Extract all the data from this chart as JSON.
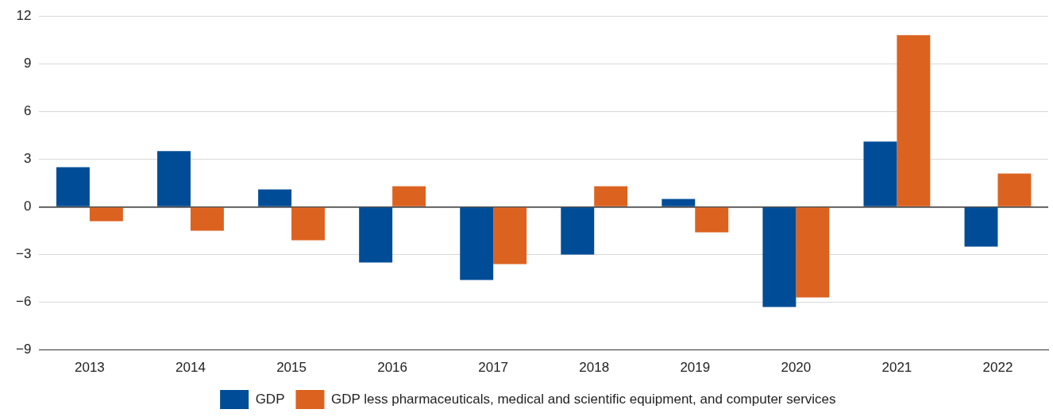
{
  "chart_data": {
    "type": "bar",
    "categories": [
      "2013",
      "2014",
      "2015",
      "2016",
      "2017",
      "2018",
      "2019",
      "2020",
      "2021",
      "2022"
    ],
    "series": [
      {
        "name": "GDP",
        "color": "#004c97",
        "values": [
          2.5,
          3.5,
          1.1,
          -3.5,
          -4.6,
          -3.0,
          0.5,
          -6.3,
          4.1,
          -2.5
        ]
      },
      {
        "name": "GDP less pharmaceuticals, medical and scientific equipment, and computer services",
        "color": "#dc6220",
        "values": [
          -0.9,
          -1.5,
          -2.1,
          1.3,
          -3.6,
          1.3,
          -1.6,
          -5.7,
          10.8,
          2.1
        ]
      }
    ],
    "ylim": [
      -9,
      12
    ],
    "yticks": [
      -9,
      -6,
      -3,
      0,
      3,
      6,
      9,
      12
    ],
    "grid": "y",
    "legend": "bottom"
  }
}
